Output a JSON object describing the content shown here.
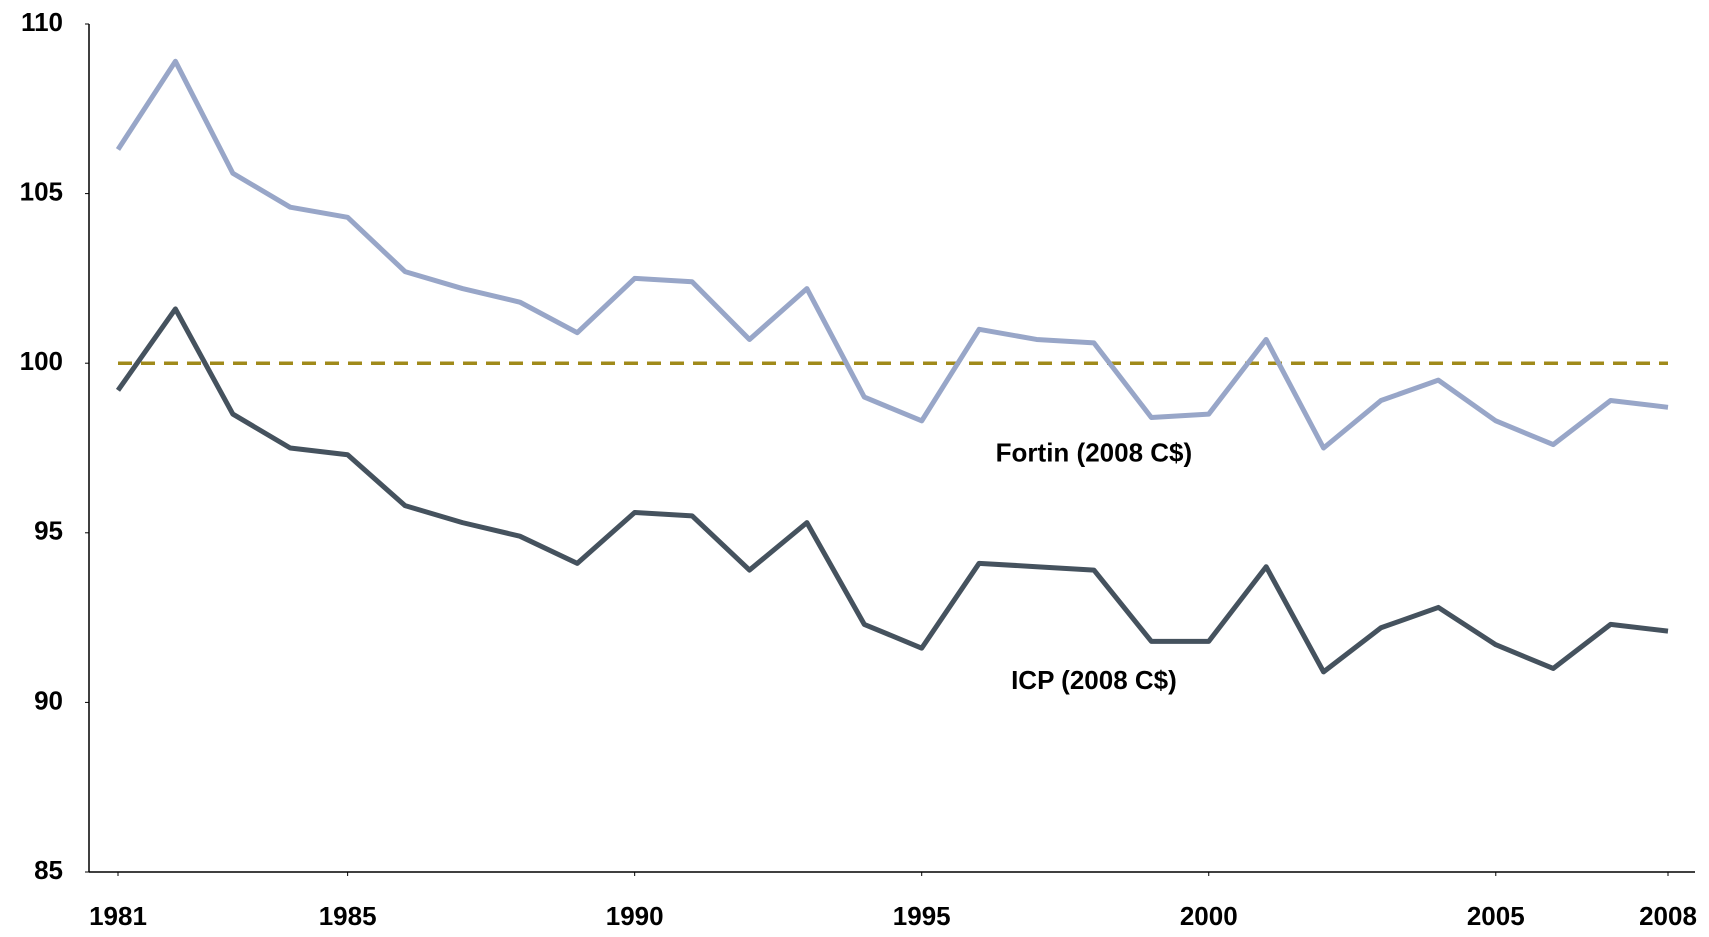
{
  "chart_data": {
    "type": "line",
    "x": [
      1981,
      1982,
      1983,
      1984,
      1985,
      1986,
      1987,
      1988,
      1989,
      1990,
      1991,
      1992,
      1993,
      1994,
      1995,
      1996,
      1997,
      1998,
      1999,
      2000,
      2001,
      2002,
      2003,
      2004,
      2005,
      2006,
      2007,
      2008
    ],
    "series": [
      {
        "name": "Fortin (2008 C$)",
        "color": "#98a6c8",
        "values": [
          106.3,
          108.9,
          105.6,
          104.6,
          104.3,
          102.7,
          102.2,
          101.8,
          100.9,
          102.5,
          102.4,
          100.7,
          102.2,
          99.0,
          98.3,
          101.0,
          100.7,
          100.6,
          98.4,
          98.5,
          100.7,
          97.5,
          98.9,
          99.5,
          98.3,
          97.6,
          98.9,
          98.7
        ]
      },
      {
        "name": "ICP (2008 C$)",
        "color": "#45525e",
        "values": [
          99.2,
          101.6,
          98.5,
          97.5,
          97.3,
          95.8,
          95.3,
          94.9,
          94.1,
          95.6,
          95.5,
          93.9,
          95.3,
          92.3,
          91.6,
          94.1,
          94.0,
          93.9,
          91.8,
          91.8,
          94.0,
          90.9,
          92.2,
          92.8,
          91.7,
          91.0,
          92.3,
          92.1
        ]
      }
    ],
    "reference_line": {
      "value": 100,
      "color": "#a08a1a"
    },
    "xlim": [
      1981,
      2008
    ],
    "xticks": [
      1981,
      1985,
      1990,
      1995,
      2000,
      2005,
      2008
    ],
    "ylim": [
      85,
      110
    ],
    "yticks": [
      85,
      90,
      95,
      100,
      105,
      110
    ],
    "grid": false
  }
}
